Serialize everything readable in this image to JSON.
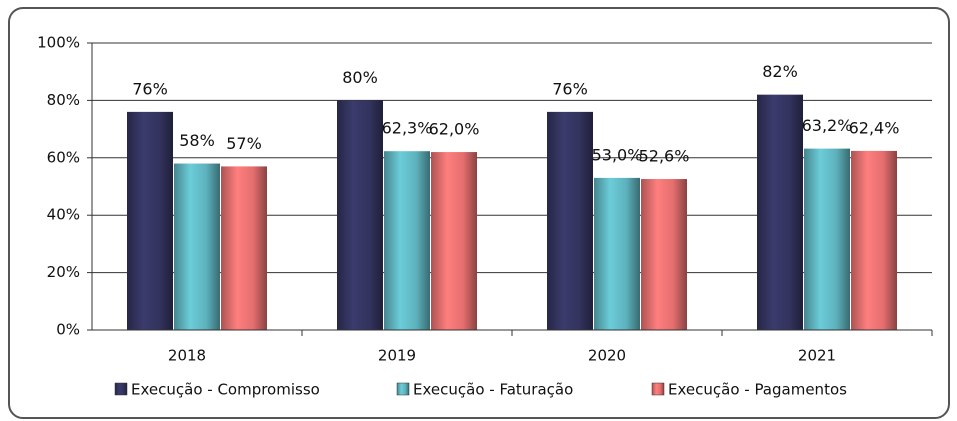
{
  "chart_data": {
    "type": "bar",
    "categories": [
      "2018",
      "2019",
      "2020",
      "2021"
    ],
    "series": [
      {
        "name": "Execução - Compromisso",
        "color": "#33335f",
        "values": [
          76,
          80,
          76,
          82
        ],
        "value_labels": [
          "76%",
          "80%",
          "76%",
          "82%"
        ]
      },
      {
        "name": "Execução - Faturação",
        "color": "#5db2bd",
        "values": [
          58,
          62.3,
          53.0,
          63.2
        ],
        "value_labels": [
          "58%",
          "62,3%",
          "53,0%",
          "63,2%"
        ]
      },
      {
        "name": "Execução - Pagamentos",
        "color": "#e56e6e",
        "values": [
          57,
          62.0,
          52.6,
          62.4
        ],
        "value_labels": [
          "57%",
          "62,0%",
          "52,6%",
          "62,4%"
        ]
      }
    ],
    "ylim": [
      0,
      100
    ],
    "yticks": [
      {
        "value": 0,
        "label": "0%"
      },
      {
        "value": 20,
        "label": "20%"
      },
      {
        "value": 40,
        "label": "40%"
      },
      {
        "value": 60,
        "label": "60%"
      },
      {
        "value": 80,
        "label": "80%"
      },
      {
        "value": 100,
        "label": "100%"
      }
    ],
    "grid": true,
    "legend": "bottom"
  }
}
